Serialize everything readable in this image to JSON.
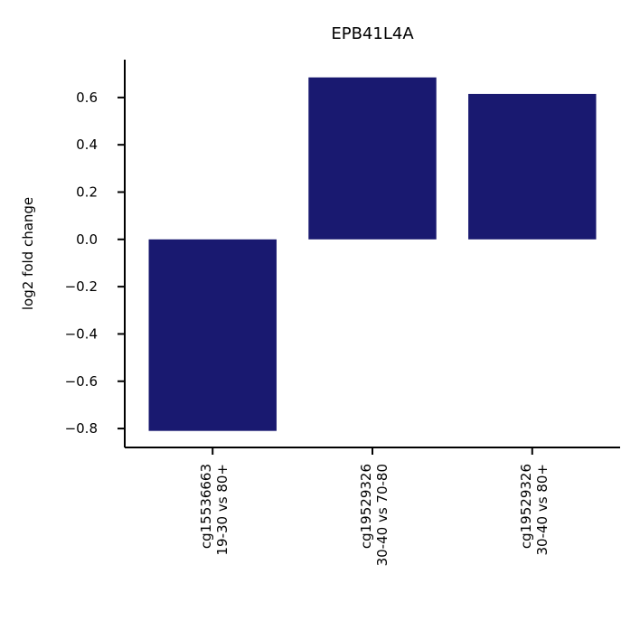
{
  "chart_data": {
    "type": "bar",
    "title": "EPB41L4A",
    "xlabel": "",
    "ylabel": "log2 fold change",
    "categories": [
      [
        "cg15536663",
        "19-30 vs 80+"
      ],
      [
        "cg19529326",
        "30-40 vs 70-80"
      ],
      [
        "cg19529326",
        "30-40 vs 80+"
      ]
    ],
    "values": [
      -0.81,
      0.685,
      0.615
    ],
    "ylim": [
      -0.88,
      0.76
    ],
    "yticks": [
      0.6,
      0.4,
      0.2,
      0.0,
      -0.2,
      -0.4,
      -0.6,
      -0.8
    ],
    "ytick_labels": [
      "0.6",
      "0.4",
      "0.2",
      "0.0",
      "−0.2",
      "−0.4",
      "−0.6",
      "−0.8"
    ],
    "bar_color": "#191970",
    "grid": false,
    "legend": "none"
  }
}
